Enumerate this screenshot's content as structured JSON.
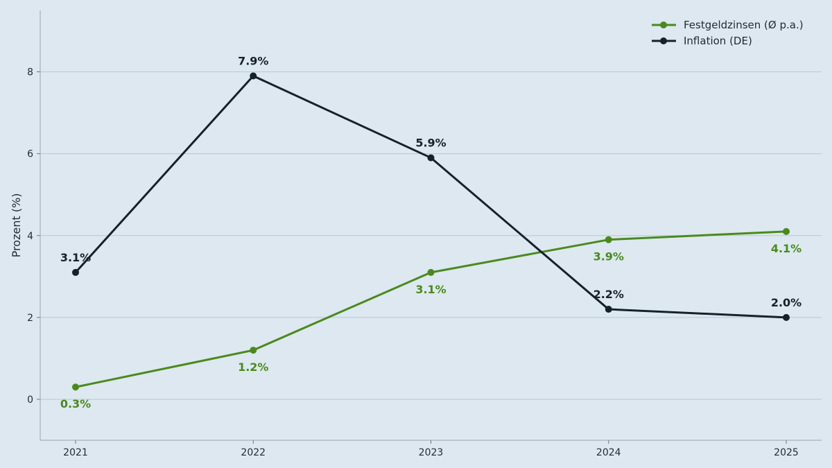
{
  "chart_data": {
    "type": "line",
    "title": "",
    "xlabel": "",
    "ylabel": "Prozent (%)",
    "x": [
      "2021",
      "2022",
      "2023",
      "2024",
      "2025"
    ],
    "yticks": [
      "0",
      "2",
      "4",
      "6",
      "8"
    ],
    "ylim": [
      -1,
      9.5
    ],
    "grid": "horizontal",
    "legend": "top-right",
    "series": [
      {
        "name": "Festgeldzinsen (Ø p.a.)",
        "color": "#4a8a1c",
        "values": [
          0.3,
          1.2,
          3.1,
          3.9,
          4.1
        ],
        "labels": [
          "0.3%",
          "1.2%",
          "3.1%",
          "3.9%",
          "4.1%"
        ],
        "label_position": "below"
      },
      {
        "name": "Inflation (DE)",
        "color": "#15212b",
        "values": [
          3.1,
          7.9,
          5.9,
          2.2,
          2.0
        ],
        "labels": [
          "3.1%",
          "7.9%",
          "5.9%",
          "2.2%",
          "2.0%"
        ],
        "label_position": "above"
      }
    ]
  }
}
